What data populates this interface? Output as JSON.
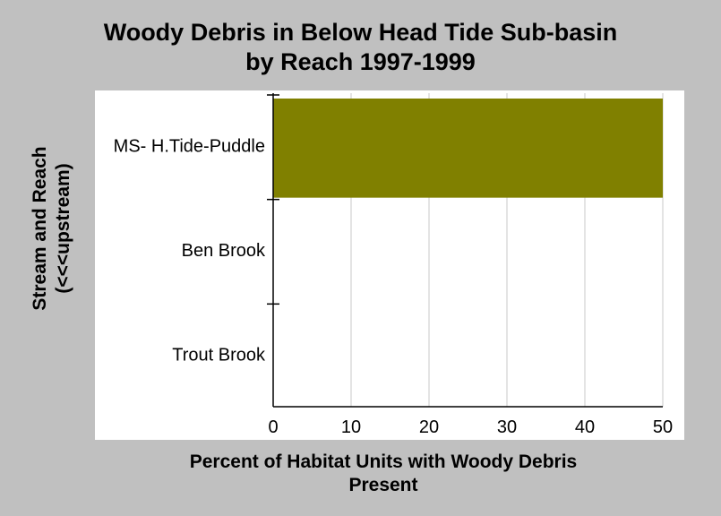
{
  "chart_data": {
    "type": "bar",
    "orientation": "horizontal",
    "title_line1": "Woody Debris in Below Head Tide Sub-basin",
    "title_line2": "by Reach 1997-1999",
    "xlabel_line1": "Percent of Habitat Units with Woody Debris",
    "xlabel_line2": "Present",
    "ylabel_line1": "Stream and Reach",
    "ylabel_line2": "(<<<upstream)",
    "categories": [
      "MS- H.Tide-Puddle",
      "Ben Brook",
      "Trout Brook"
    ],
    "values": [
      50,
      0,
      0
    ],
    "xlim": [
      0,
      50
    ],
    "xticks": [
      0,
      10,
      20,
      30,
      40,
      50
    ],
    "grid": "vertical",
    "legend": "none",
    "bar_color": "#808000",
    "plot_background": "#ffffff",
    "page_background": "#c0c0c0"
  }
}
